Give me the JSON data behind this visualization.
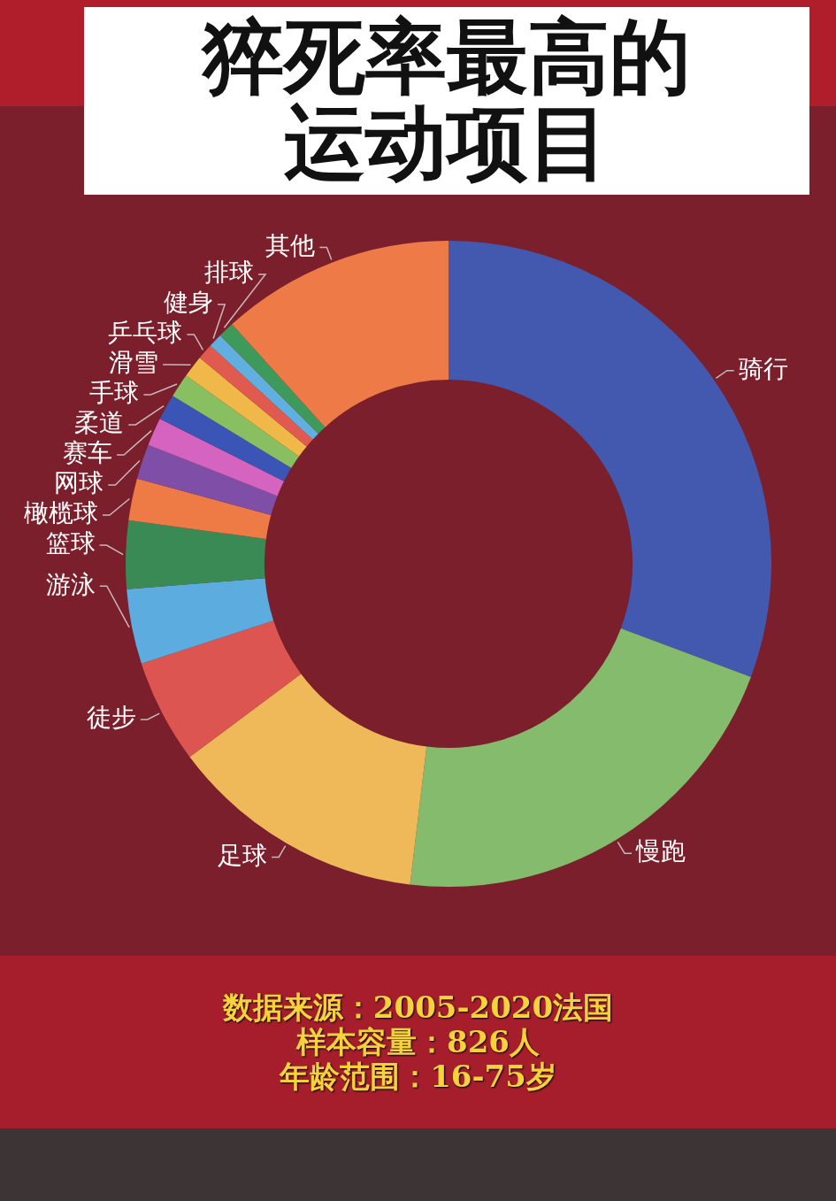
{
  "chart_data": {
    "type": "donut",
    "title": "猝死率最高的运动项目",
    "categories": [
      "骑行",
      "慢跑",
      "足球",
      "徒步",
      "游泳",
      "篮球",
      "橄榄球",
      "网球",
      "赛车",
      "柔道",
      "手球",
      "滑雪",
      "乒乓球",
      "健身",
      "排球",
      "其他"
    ],
    "values": [
      30.7,
      21.2,
      12.9,
      5.2,
      3.75,
      3.4,
      2.1,
      1.75,
      1.4,
      1.3,
      1.2,
      1.1,
      0.8,
      0.7,
      0.8,
      11.7
    ],
    "colors": [
      "#4359b0",
      "#85bb6c",
      "#efb95a",
      "#dd5550",
      "#5cacdf",
      "#3a8a55",
      "#ee7a45",
      "#7f4fa8",
      "#d564c0",
      "#3a55b5",
      "#88bf60",
      "#f0b848",
      "#e05a4f",
      "#5fb0e0",
      "#3d9a5a",
      "#ee7a48"
    ],
    "annotations": [
      "数据来源：2005-2020法国",
      "样本容量：826人",
      "年龄范围：16-75岁"
    ]
  }
}
